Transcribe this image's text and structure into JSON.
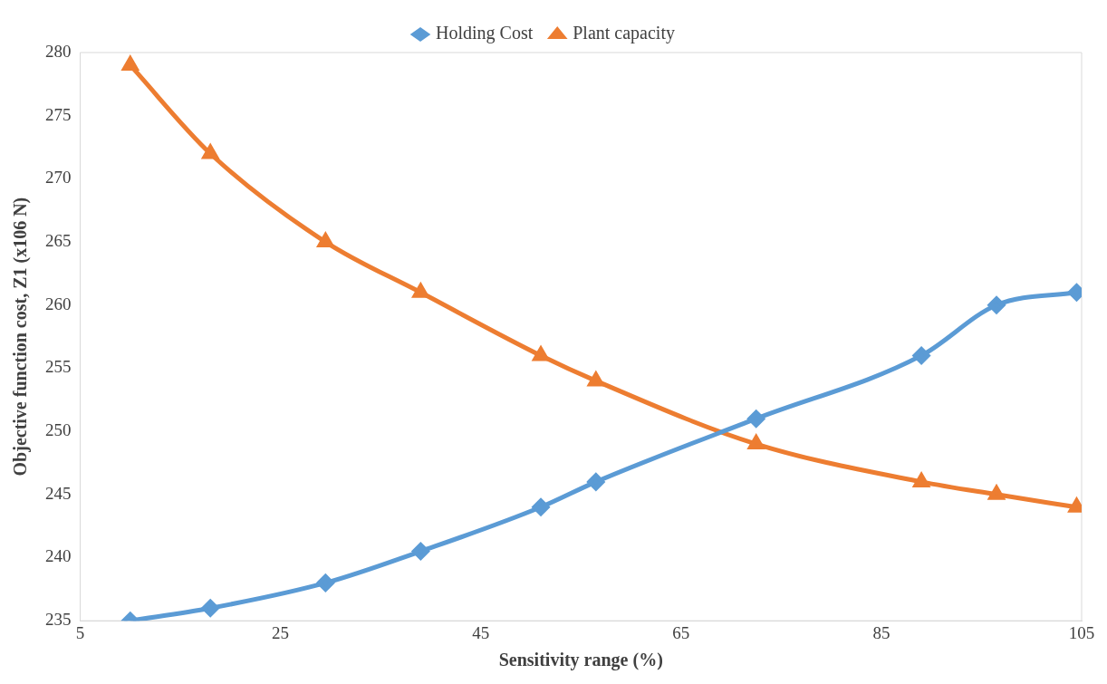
{
  "chart_data": {
    "type": "line",
    "xlabel": "Sensitivity range (%)",
    "ylabel": "Objective function cost, Z1 (x106 N)",
    "x": [
      10,
      18,
      29.5,
      39,
      51,
      56.5,
      72.5,
      89,
      96.5,
      104.5
    ],
    "series": [
      {
        "name": "Holding Cost",
        "color": "#5b9bd5",
        "marker": "diamond",
        "values": [
          235,
          236,
          238,
          240.5,
          244,
          246,
          251,
          256,
          260,
          261
        ]
      },
      {
        "name": "Plant capacity",
        "color": "#ed7d31",
        "marker": "triangle",
        "values": [
          279,
          272,
          265,
          261,
          256,
          254,
          249,
          246,
          245,
          244
        ]
      }
    ],
    "xlim": [
      5,
      105
    ],
    "xticks": [
      5,
      25,
      45,
      65,
      85,
      105
    ],
    "ylim": [
      235,
      280
    ],
    "yticks": [
      235,
      240,
      245,
      250,
      255,
      260,
      265,
      270,
      275,
      280
    ],
    "grid": false,
    "legend": "top"
  }
}
